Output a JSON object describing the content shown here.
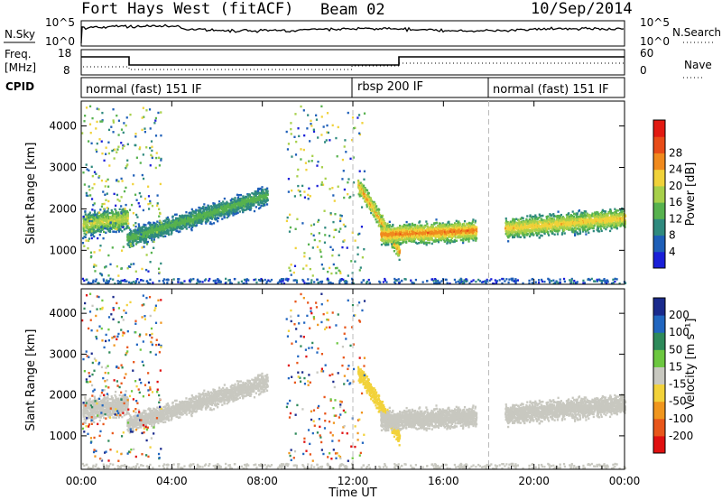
{
  "header": {
    "station": "Fort Hays West (fitACF)",
    "beam": "Beam 02",
    "date": "10/Sep/2014"
  },
  "top_panels": {
    "nsky_label": "N.Sky",
    "nsearch_label": "N.Search",
    "nsky_ticks": [
      "10^5",
      "10^0"
    ],
    "nsearch_ticks": [
      "10^5",
      "10^0"
    ],
    "freq_label": "Freq.",
    "freq_unit": "[MHz]",
    "freq_ticks": [
      "18",
      "8"
    ],
    "nave_label": "Nave",
    "nave_ticks": [
      "60",
      "0"
    ],
    "cpid_label": "CPID",
    "cpid_segments": [
      {
        "text": "normal (fast) 151 IF",
        "start_hour": 0
      },
      {
        "text": "rbsp 200 IF",
        "start_hour": 12
      },
      {
        "text": "normal (fast) 151 IF",
        "start_hour": 18
      }
    ]
  },
  "chart_data": [
    {
      "type": "heatmap",
      "ylabel": "Slant Range [km]",
      "yticks": [
        "1000",
        "2000",
        "3000",
        "4000"
      ],
      "yticks_values": [
        1000,
        2000,
        3000,
        4000
      ],
      "ylim": [
        180,
        4600
      ],
      "xlim": [
        0,
        24
      ],
      "colorbar": {
        "label": "Power [dB]",
        "ticks": [
          "4",
          "8",
          "12",
          "16",
          "20",
          "24",
          "28"
        ],
        "colors": [
          "#1a1fd8",
          "#1e5fb8",
          "#2f8a7e",
          "#57b24e",
          "#a7d04a",
          "#f0d23a",
          "#f08a1e",
          "#e84c18",
          "#e21a12"
        ]
      }
    },
    {
      "type": "heatmap",
      "ylabel": "Slant Range [km]",
      "yticks": [
        "1000",
        "2000",
        "3000",
        "4000"
      ],
      "yticks_values": [
        1000,
        2000,
        3000,
        4000
      ],
      "ylim": [
        180,
        4600
      ],
      "xlim": [
        0,
        24
      ],
      "xlabel": "Time UT",
      "xticks": [
        "00:00",
        "04:00",
        "08:00",
        "12:00",
        "16:00",
        "20:00",
        "00:00"
      ],
      "colorbar": {
        "label": "Velocity [m s⁻¹]",
        "ticks": [
          "200",
          "100",
          "50",
          "15",
          "-15",
          "-50",
          "-100",
          "-200"
        ],
        "colors": [
          "#1a2a8c",
          "#2166c0",
          "#2e8a5a",
          "#6cc740",
          "#c8c8c0",
          "#f2d23a",
          "#f0961e",
          "#e8561a",
          "#e01010"
        ]
      }
    }
  ]
}
